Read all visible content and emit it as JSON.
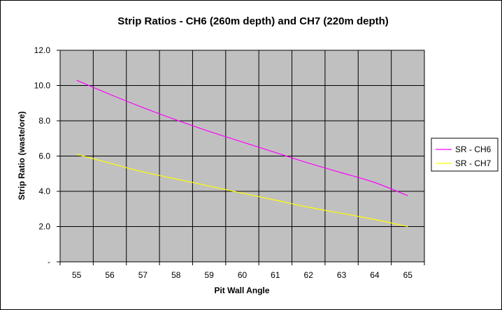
{
  "chart_data": {
    "type": "line",
    "title": "Strip Ratios - CH6 (260m depth) and CH7 (220m depth)",
    "xlabel": "Pit Wall Angle",
    "ylabel": "Strip Ratio (waste/ore)",
    "categories": [
      "55",
      "56",
      "57",
      "58",
      "59",
      "60",
      "61",
      "62",
      "63",
      "64",
      "65"
    ],
    "x": [
      55,
      56,
      57,
      58,
      59,
      60,
      61,
      62,
      63,
      64,
      65
    ],
    "ylim": [
      0,
      12
    ],
    "yticks": [
      0,
      2,
      4,
      6,
      8,
      10,
      12
    ],
    "ytick_labels": [
      "-",
      "2.0",
      "4.0",
      "6.0",
      "8.0",
      "10.0",
      "12.0"
    ],
    "grid": true,
    "plot_background": "#c0c0c0",
    "legend_position": "right",
    "series": [
      {
        "name": "SR - CH6",
        "color": "#ff00ff",
        "values": [
          10.3,
          9.5,
          8.75,
          8.05,
          7.4,
          6.8,
          6.2,
          5.6,
          5.05,
          4.5,
          3.75
        ]
      },
      {
        "name": "SR - CH7",
        "color": "#ffff00",
        "values": [
          6.1,
          5.6,
          5.1,
          4.7,
          4.3,
          3.9,
          3.5,
          3.1,
          2.75,
          2.4,
          2.0
        ]
      }
    ]
  }
}
